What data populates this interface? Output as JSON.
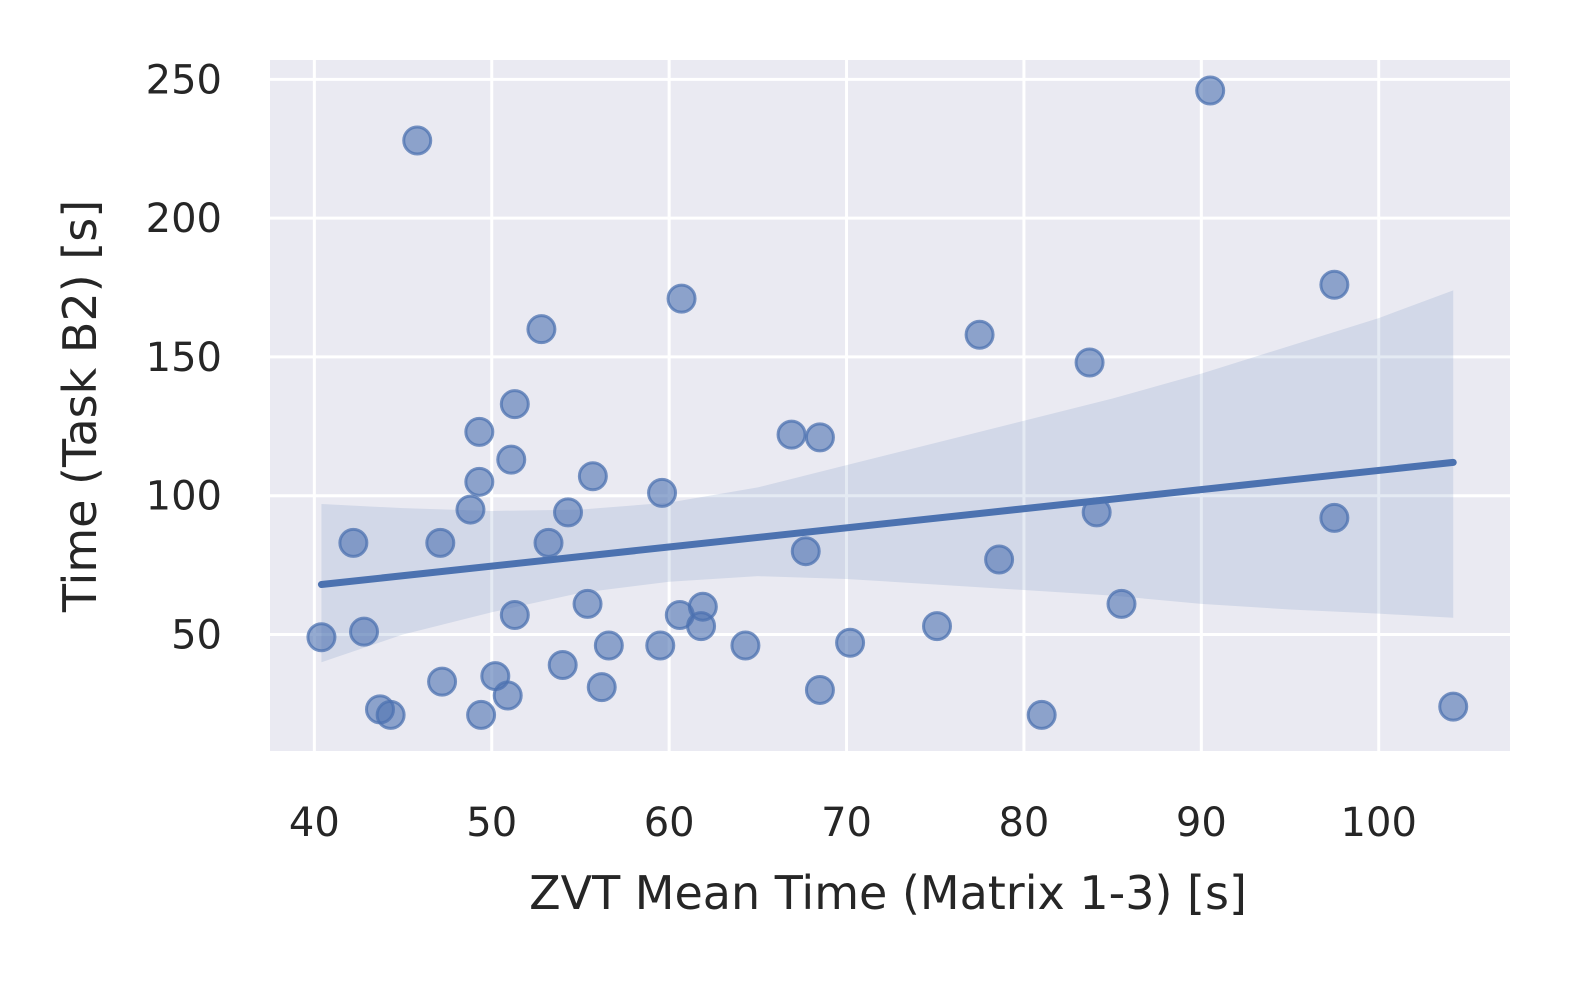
{
  "chart_data": {
    "type": "scatter",
    "xlabel": "ZVT Mean Time (Matrix 1-3) [s]",
    "ylabel": "Time (Task B2) [s]",
    "xlim": [
      37.5,
      107.4
    ],
    "ylim": [
      8,
      257
    ],
    "xticks": [
      "40",
      "50",
      "60",
      "70",
      "80",
      "90",
      "100"
    ],
    "yticks": [
      "50",
      "100",
      "150",
      "200",
      "250"
    ],
    "xtick_values": [
      40,
      50,
      60,
      70,
      80,
      90,
      100
    ],
    "ytick_values": [
      50,
      100,
      150,
      200,
      250
    ],
    "grid": true,
    "colors": {
      "background": "#eaeaf2",
      "series": "#4c72b0",
      "grid": "#ffffff"
    },
    "points": [
      {
        "x": 40.4,
        "y": 49
      },
      {
        "x": 42.2,
        "y": 83
      },
      {
        "x": 42.8,
        "y": 51
      },
      {
        "x": 43.7,
        "y": 23
      },
      {
        "x": 44.3,
        "y": 21
      },
      {
        "x": 45.8,
        "y": 228
      },
      {
        "x": 47.1,
        "y": 83
      },
      {
        "x": 47.2,
        "y": 33
      },
      {
        "x": 48.8,
        "y": 95
      },
      {
        "x": 49.3,
        "y": 123
      },
      {
        "x": 49.3,
        "y": 105
      },
      {
        "x": 49.4,
        "y": 21
      },
      {
        "x": 50.2,
        "y": 35
      },
      {
        "x": 50.9,
        "y": 28
      },
      {
        "x": 51.1,
        "y": 113
      },
      {
        "x": 51.3,
        "y": 133
      },
      {
        "x": 51.3,
        "y": 57
      },
      {
        "x": 52.8,
        "y": 160
      },
      {
        "x": 53.2,
        "y": 83
      },
      {
        "x": 54.0,
        "y": 39
      },
      {
        "x": 54.3,
        "y": 94
      },
      {
        "x": 55.4,
        "y": 61
      },
      {
        "x": 55.7,
        "y": 107
      },
      {
        "x": 56.2,
        "y": 31
      },
      {
        "x": 56.6,
        "y": 46
      },
      {
        "x": 59.5,
        "y": 46
      },
      {
        "x": 59.6,
        "y": 101
      },
      {
        "x": 60.6,
        "y": 57
      },
      {
        "x": 60.7,
        "y": 171
      },
      {
        "x": 61.8,
        "y": 53
      },
      {
        "x": 61.9,
        "y": 60
      },
      {
        "x": 64.3,
        "y": 46
      },
      {
        "x": 66.9,
        "y": 122
      },
      {
        "x": 67.7,
        "y": 80
      },
      {
        "x": 68.5,
        "y": 121
      },
      {
        "x": 68.5,
        "y": 30
      },
      {
        "x": 70.2,
        "y": 47
      },
      {
        "x": 75.1,
        "y": 53
      },
      {
        "x": 77.5,
        "y": 158
      },
      {
        "x": 78.6,
        "y": 77
      },
      {
        "x": 81.0,
        "y": 21
      },
      {
        "x": 83.7,
        "y": 148
      },
      {
        "x": 84.1,
        "y": 94
      },
      {
        "x": 85.5,
        "y": 61
      },
      {
        "x": 90.5,
        "y": 246
      },
      {
        "x": 97.5,
        "y": 176
      },
      {
        "x": 97.5,
        "y": 92
      },
      {
        "x": 104.2,
        "y": 24
      }
    ],
    "regression": {
      "x": [
        40.4,
        104.2
      ],
      "y": [
        68,
        112
      ],
      "ci_upper": [
        {
          "x": 40.4,
          "y": 97
        },
        {
          "x": 45,
          "y": 95.5
        },
        {
          "x": 50,
          "y": 94.5
        },
        {
          "x": 55,
          "y": 95
        },
        {
          "x": 60,
          "y": 97.5
        },
        {
          "x": 65,
          "y": 103
        },
        {
          "x": 70,
          "y": 111
        },
        {
          "x": 75,
          "y": 119
        },
        {
          "x": 80,
          "y": 127
        },
        {
          "x": 85,
          "y": 135
        },
        {
          "x": 90,
          "y": 144
        },
        {
          "x": 95,
          "y": 154
        },
        {
          "x": 100,
          "y": 164
        },
        {
          "x": 104.2,
          "y": 174
        }
      ],
      "ci_lower": [
        {
          "x": 40.4,
          "y": 40
        },
        {
          "x": 45,
          "y": 50
        },
        {
          "x": 50,
          "y": 58
        },
        {
          "x": 55,
          "y": 65
        },
        {
          "x": 60,
          "y": 69
        },
        {
          "x": 65,
          "y": 71
        },
        {
          "x": 70,
          "y": 70
        },
        {
          "x": 75,
          "y": 68
        },
        {
          "x": 80,
          "y": 66
        },
        {
          "x": 85,
          "y": 64
        },
        {
          "x": 90,
          "y": 61
        },
        {
          "x": 95,
          "y": 59
        },
        {
          "x": 100,
          "y": 57.5
        },
        {
          "x": 104.2,
          "y": 56
        }
      ]
    }
  }
}
